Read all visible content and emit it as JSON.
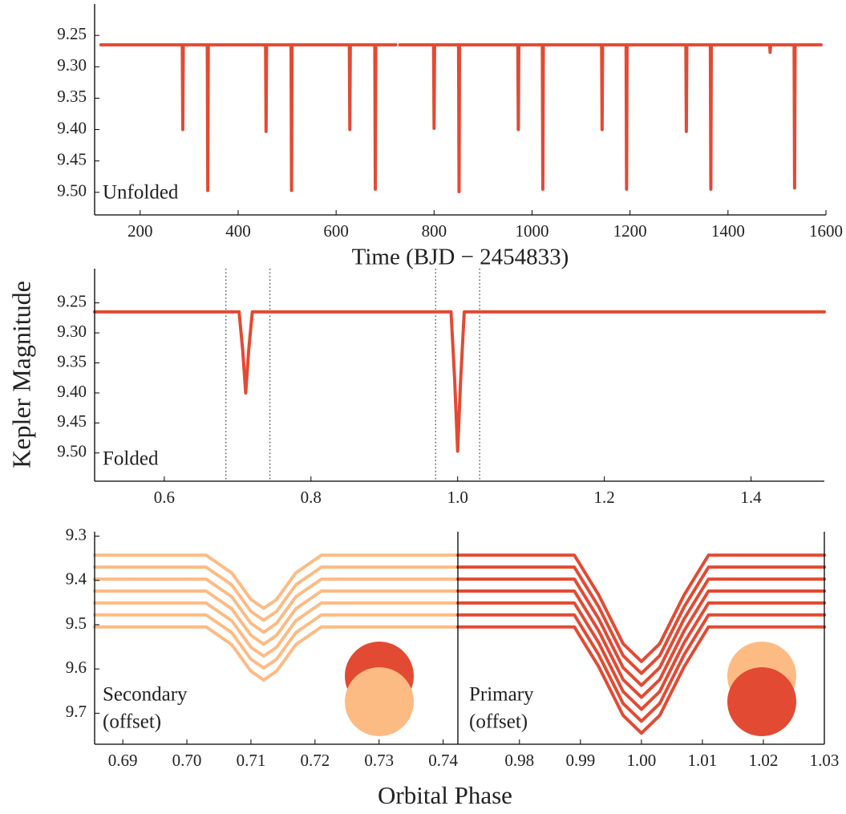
{
  "y_label": "Kepler Magnitude",
  "x_label": "Orbital Phase",
  "chart_data": [
    {
      "type": "line",
      "annotation": [
        "Unfolded"
      ],
      "x_label": "Time (BJD − 2454833)",
      "color": "#e34a33",
      "invert_y": true,
      "xlim": [
        107,
        1600
      ],
      "ylim": [
        9.2,
        9.536
      ],
      "xticks": [
        200,
        400,
        600,
        800,
        1000,
        1200,
        1400,
        1600
      ],
      "yticks": [
        9.25,
        {
          "value": 9.3,
          "label": "9.30"
        },
        9.35,
        {
          "value": 9.4,
          "label": "9.40"
        },
        9.45,
        {
          "value": 9.5,
          "label": "9.50"
        }
      ],
      "x": [
        120,
        286,
        287,
        288,
        337,
        338,
        339,
        456,
        457,
        458,
        508,
        509,
        510,
        627,
        628,
        629,
        679,
        680,
        681,
        722,
        726,
        730,
        799,
        800,
        801,
        850,
        851,
        852,
        971,
        972,
        973,
        1021,
        1022,
        1023,
        1142,
        1143,
        1144,
        1192,
        1193,
        1194,
        1314,
        1315,
        1316,
        1364,
        1365,
        1366,
        1485,
        1486,
        1487,
        1535,
        1536,
        1537,
        1590
      ],
      "values": [
        9.265,
        9.265,
        9.4,
        9.265,
        9.265,
        9.497,
        9.265,
        9.265,
        9.403,
        9.265,
        9.265,
        9.497,
        9.265,
        9.265,
        9.4,
        9.265,
        9.265,
        9.495,
        9.265,
        9.265,
        null,
        9.265,
        9.265,
        9.398,
        9.265,
        9.265,
        9.499,
        9.265,
        9.265,
        9.4,
        9.265,
        9.265,
        9.495,
        9.265,
        9.265,
        9.4,
        9.265,
        9.265,
        9.495,
        9.265,
        9.265,
        9.403,
        9.265,
        9.265,
        9.495,
        9.265,
        9.265,
        9.277,
        9.265,
        9.265,
        9.493,
        9.265,
        9.265
      ]
    },
    {
      "type": "line",
      "annotation": [
        "Folded"
      ],
      "color": "#e34a33",
      "invert_y": true,
      "xlim": [
        0.505,
        1.5
      ],
      "ylim": [
        9.193,
        9.547
      ],
      "xticks": [
        0.6,
        0.8,
        {
          "value": 1,
          "label": "1.0"
        },
        1.2,
        1.4
      ],
      "yticks": [
        9.25,
        {
          "value": 9.3,
          "label": "9.30"
        },
        9.35,
        {
          "value": 9.4,
          "label": "9.40"
        },
        9.45,
        {
          "value": 9.5,
          "label": "9.50"
        }
      ],
      "vlines": [
        0.684,
        0.744,
        0.97,
        1.03
      ],
      "x": [
        0.505,
        0.702,
        0.707,
        0.711,
        0.715,
        0.72,
        0.991,
        0.996,
        1.0,
        1.004,
        1.009,
        1.5
      ],
      "values": [
        9.265,
        9.265,
        9.33,
        9.4,
        9.33,
        9.265,
        9.265,
        9.38,
        9.497,
        9.38,
        9.265,
        9.265
      ]
    },
    {
      "type": "line",
      "annotation": [
        "Secondary",
        "(offset)"
      ],
      "invert_y": true,
      "xlim": [
        0.6856,
        0.7423
      ],
      "ylim": [
        9.29,
        9.77
      ],
      "xticks": [
        0.69,
        {
          "value": 0.7,
          "label": "0.70"
        },
        0.71,
        0.72,
        0.73,
        0.74
      ],
      "yticks": [
        9.3,
        9.4,
        9.5,
        9.6,
        9.7
      ],
      "x": [
        0.6856,
        0.703,
        0.707,
        0.71,
        0.712,
        0.714,
        0.717,
        0.721,
        0.7423
      ],
      "series": [
        {
          "color": "#fdbb84",
          "values": [
            9.343,
            9.343,
            9.383,
            9.443,
            9.463,
            9.443,
            9.383,
            9.343,
            9.343
          ]
        },
        {
          "color": "#fdbb84",
          "values": [
            9.37,
            9.37,
            9.41,
            9.47,
            9.49,
            9.47,
            9.41,
            9.37,
            9.37
          ]
        },
        {
          "color": "#fdbb84",
          "values": [
            9.397,
            9.397,
            9.437,
            9.497,
            9.517,
            9.497,
            9.437,
            9.397,
            9.397
          ]
        },
        {
          "color": "#fdbb84",
          "values": [
            9.424,
            9.424,
            9.464,
            9.524,
            9.544,
            9.524,
            9.464,
            9.424,
            9.424
          ]
        },
        {
          "color": "#fdbb84",
          "values": [
            9.451,
            9.451,
            9.491,
            9.551,
            9.571,
            9.551,
            9.491,
            9.451,
            9.451
          ]
        },
        {
          "color": "#fdbb84",
          "values": [
            9.478,
            9.478,
            9.518,
            9.578,
            9.598,
            9.578,
            9.518,
            9.478,
            9.478
          ]
        },
        {
          "color": "#fdbb84",
          "values": [
            9.505,
            9.505,
            9.545,
            9.605,
            9.625,
            9.605,
            9.545,
            9.505,
            9.505
          ]
        }
      ]
    },
    {
      "type": "line",
      "annotation": [
        "Primary",
        "(offset)"
      ],
      "invert_y": true,
      "right_spine": true,
      "xlim": [
        0.9699,
        1.03
      ],
      "ylim": [
        9.29,
        9.77
      ],
      "xticks": [
        0.98,
        0.99,
        {
          "value": 1,
          "label": "1.00"
        },
        1.01,
        1.02,
        1.03
      ],
      "x": [
        0.9699,
        0.989,
        0.993,
        0.997,
        1.0,
        1.003,
        1.007,
        1.011,
        1.03
      ],
      "series": [
        {
          "color": "#e34a33",
          "values": [
            9.343,
            9.343,
            9.433,
            9.543,
            9.583,
            9.543,
            9.433,
            9.343,
            9.343
          ]
        },
        {
          "color": "#e34a33",
          "values": [
            9.37,
            9.37,
            9.46,
            9.57,
            9.61,
            9.57,
            9.46,
            9.37,
            9.37
          ]
        },
        {
          "color": "#e34a33",
          "values": [
            9.397,
            9.397,
            9.487,
            9.597,
            9.637,
            9.597,
            9.487,
            9.397,
            9.397
          ]
        },
        {
          "color": "#e34a33",
          "values": [
            9.424,
            9.424,
            9.514,
            9.624,
            9.664,
            9.624,
            9.514,
            9.424,
            9.424
          ]
        },
        {
          "color": "#e34a33",
          "values": [
            9.451,
            9.451,
            9.541,
            9.651,
            9.691,
            9.651,
            9.541,
            9.451,
            9.451
          ]
        },
        {
          "color": "#e34a33",
          "values": [
            9.478,
            9.478,
            9.568,
            9.678,
            9.718,
            9.678,
            9.568,
            9.478,
            9.478
          ]
        },
        {
          "color": "#e34a33",
          "values": [
            9.505,
            9.505,
            9.595,
            9.705,
            9.745,
            9.705,
            9.595,
            9.505,
            9.505
          ]
        }
      ]
    }
  ]
}
